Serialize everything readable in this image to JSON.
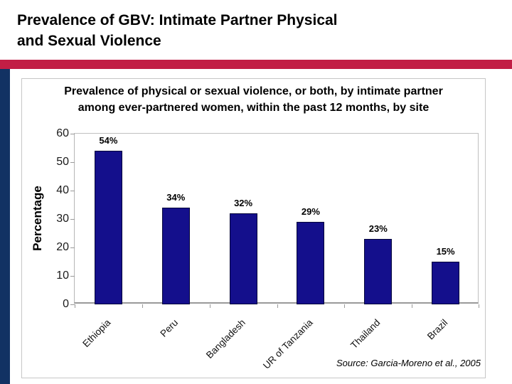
{
  "slide": {
    "title_line1": "Prevalence of GBV: Intimate Partner Physical",
    "title_line2": "and Sexual Violence",
    "accent_bar_color": "#c21e45",
    "side_stripe_color": "#123263"
  },
  "chart": {
    "source": "Source: Garcia-Moreno et al., 2005"
  },
  "chart_data": {
    "type": "bar",
    "title": "Prevalence of physical or sexual violence, or both, by intimate partner among ever-partnered women, within the past 12 months, by site",
    "categories": [
      "Ethiopia",
      "Peru",
      "Bangladesh",
      "UR of Tanzania",
      "Thailand",
      "Brazil"
    ],
    "values": [
      54,
      34,
      32,
      29,
      23,
      15
    ],
    "value_labels": [
      "54%",
      "34%",
      "32%",
      "29%",
      "23%",
      "15%"
    ],
    "xlabel": "",
    "ylabel": "Percentage",
    "ylim": [
      0,
      60
    ],
    "yticks": [
      0,
      10,
      20,
      30,
      40,
      50,
      60
    ],
    "grid": false,
    "legend_position": "none",
    "bar_color": "#140f8c"
  }
}
